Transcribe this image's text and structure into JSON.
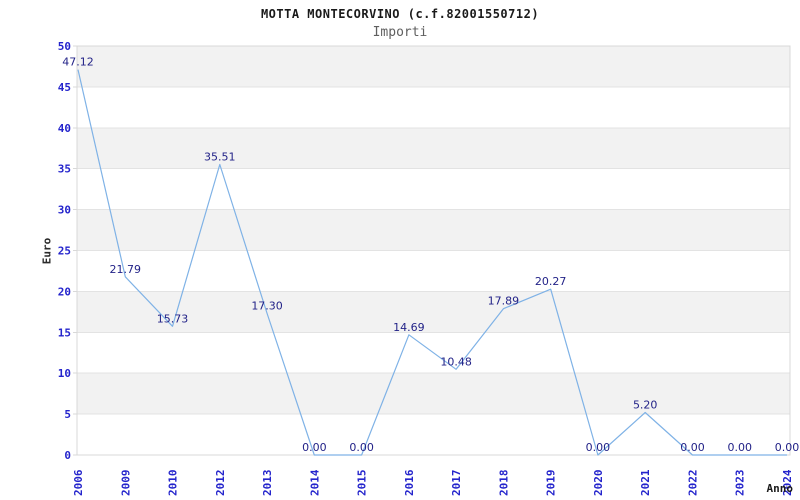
{
  "page": {
    "background": "#ffffff"
  },
  "chart_data": {
    "type": "line",
    "title": "MOTTA MONTECORVINO (c.f.82001550712)",
    "subtitle": "Importi",
    "xlabel": "Anno",
    "ylabel": "Euro",
    "categories": [
      "2006",
      "2009",
      "2010",
      "2012",
      "2013",
      "2014",
      "2015",
      "2016",
      "2017",
      "2018",
      "2019",
      "2020",
      "2021",
      "2022",
      "2023",
      "2024"
    ],
    "series": [
      {
        "name": "Importi",
        "values": [
          47.12,
          21.79,
          15.73,
          35.51,
          17.3,
          0.0,
          0.0,
          14.69,
          10.48,
          17.89,
          20.27,
          0.0,
          5.2,
          0.0,
          0.0,
          0.0
        ]
      }
    ],
    "data_labels": [
      "47.12",
      "21.79",
      "15.73",
      "35.51",
      "17.30",
      "0.00",
      "0.00",
      "14.69",
      "10.48",
      "17.89",
      "20.27",
      "0.00",
      "5.20",
      "0.00",
      "0.00",
      "0.00"
    ],
    "ylim": [
      0,
      50
    ],
    "ytick_step": 5,
    "ytick_labels": [
      "0",
      "5",
      "10",
      "15",
      "20",
      "25",
      "30",
      "35",
      "40",
      "45",
      "50"
    ],
    "xtick_rotation": -90,
    "grid": "alternating-horizontal-bands",
    "legend": "none",
    "colors": {
      "line": "#7fb2e6",
      "band": "#f2f2f2",
      "grid_line": "#e3e3e3",
      "plot_border": "#d8d8d8",
      "tick_label": "#2424cc",
      "data_label": "#232388",
      "title": "#1a1a1a",
      "subtitle": "#5f5f5f",
      "axis_title": "#2b2b2b"
    }
  }
}
